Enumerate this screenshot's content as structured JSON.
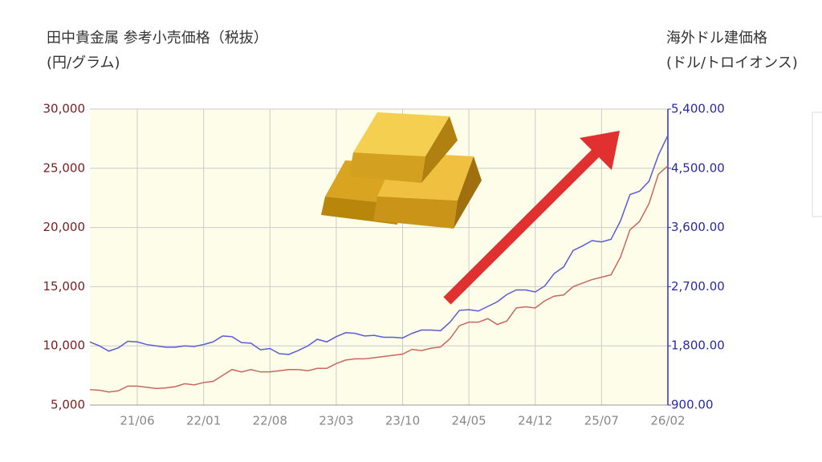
{
  "chart_data": {
    "type": "line",
    "title": "田中貴金属 参考小売価格（税抜）",
    "subtitle": "(円/グラム)",
    "y2_title": "海外ドル建価格",
    "y2_subtitle": "(ドル/トロイオンス)",
    "categories": [
      null,
      null,
      null,
      null,
      null,
      "21/06",
      null,
      null,
      null,
      null,
      null,
      null,
      "22/01",
      null,
      null,
      null,
      null,
      null,
      null,
      "22/08",
      null,
      null,
      null,
      null,
      null,
      null,
      "23/03",
      null,
      null,
      null,
      null,
      null,
      null,
      "23/10",
      null,
      null,
      null,
      null,
      null,
      null,
      "24/05",
      null,
      null,
      null,
      null,
      null,
      null,
      "24/12",
      null,
      null,
      null,
      null,
      null,
      null,
      "25/07",
      null,
      null,
      null,
      null,
      null,
      null,
      "26/02"
    ],
    "series": [
      {
        "name": "田中貴金属 参考小売価格",
        "color": "#c8685c",
        "axis": "y",
        "values": [
          6300,
          6250,
          6100,
          6200,
          6600,
          6600,
          6500,
          6400,
          6450,
          6550,
          6800,
          6700,
          6900,
          7000,
          7500,
          8000,
          7800,
          8000,
          7800,
          7800,
          7900,
          8000,
          8000,
          7900,
          8100,
          8100,
          8500,
          8800,
          8900,
          8900,
          9000,
          9100,
          9200,
          9300,
          9700,
          9600,
          9800,
          9900,
          10600,
          11700,
          12000,
          12000,
          12300,
          11800,
          12100,
          13200,
          13300,
          13200,
          13800,
          14200,
          14300,
          15000,
          15300,
          15600,
          15800,
          16000,
          17500,
          19800,
          20500,
          22000,
          24500,
          25200
        ]
      },
      {
        "name": "海外ドル建価格",
        "color": "#5b5bd6",
        "axis": "y2",
        "values": [
          1860,
          1800,
          1720,
          1770,
          1870,
          1860,
          1820,
          1800,
          1780,
          1780,
          1800,
          1790,
          1820,
          1860,
          1950,
          1940,
          1850,
          1840,
          1740,
          1760,
          1680,
          1670,
          1730,
          1800,
          1900,
          1860,
          1940,
          2000,
          1990,
          1950,
          1960,
          1930,
          1930,
          1920,
          1990,
          2040,
          2040,
          2030,
          2160,
          2340,
          2350,
          2330,
          2400,
          2470,
          2580,
          2650,
          2650,
          2620,
          2710,
          2900,
          3000,
          3250,
          3320,
          3400,
          3380,
          3420,
          3700,
          4100,
          4150,
          4300,
          4700,
          5000
        ]
      }
    ],
    "ylim": [
      5000,
      30000
    ],
    "yticks": [
      {
        "value": 5000,
        "label": "5,000"
      },
      {
        "value": 10000,
        "label": "10,000"
      },
      {
        "value": 15000,
        "label": "15,000"
      },
      {
        "value": 20000,
        "label": "20,000"
      },
      {
        "value": 25000,
        "label": "25,000"
      },
      {
        "value": 30000,
        "label": "30,000"
      }
    ],
    "y2lim": [
      900,
      5400
    ],
    "y2ticks": [
      {
        "value": 900,
        "label": "900.00"
      },
      {
        "value": 1800,
        "label": "1,800.00"
      },
      {
        "value": 2700,
        "label": "2,700.00"
      },
      {
        "value": 3600,
        "label": "3,600.00"
      },
      {
        "value": 4500,
        "label": "4,500.00"
      },
      {
        "value": 5400,
        "label": "5,400.00"
      }
    ],
    "grid": true
  }
}
